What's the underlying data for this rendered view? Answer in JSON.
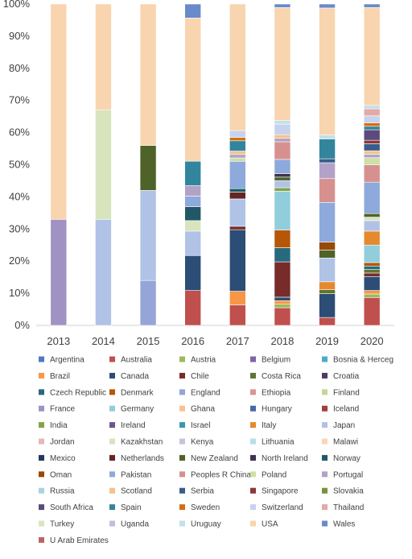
{
  "chart_data": {
    "type": "bar",
    "stacked": true,
    "normalized": true,
    "title": "",
    "xlabel": "",
    "ylabel": "",
    "ylim": [
      0,
      100
    ],
    "y_ticks": [
      "0%",
      "10%",
      "20%",
      "30%",
      "40%",
      "50%",
      "60%",
      "70%",
      "80%",
      "90%",
      "100%"
    ],
    "grid": false,
    "legend_position": "bottom",
    "categories": [
      "2013",
      "2014",
      "2015",
      "2016",
      "2017",
      "2018",
      "2019",
      "2020"
    ],
    "series": [
      {
        "name": "Argentina",
        "color": "#4E79C4",
        "values": [
          0,
          0,
          0,
          0,
          0,
          0,
          0,
          0
        ]
      },
      {
        "name": "Australia",
        "color": "#C0504D",
        "values": [
          0,
          0,
          0,
          10,
          6,
          5,
          2,
          8
        ]
      },
      {
        "name": "Austria",
        "color": "#9BBB59",
        "values": [
          0,
          0,
          0,
          0,
          0,
          1,
          0,
          1
        ]
      },
      {
        "name": "Belgium",
        "color": "#8064A2",
        "values": [
          0,
          0,
          0,
          0,
          0,
          0,
          0,
          0
        ]
      },
      {
        "name": "Bosnia & Herceg",
        "color": "#4BACC6",
        "values": [
          0,
          0,
          0,
          0,
          0,
          0,
          0,
          0
        ]
      },
      {
        "name": "Brazil",
        "color": "#F79646",
        "values": [
          0,
          0,
          0,
          0,
          4,
          1,
          0,
          1
        ]
      },
      {
        "name": "Canada",
        "color": "#2C4D75",
        "values": [
          0,
          0,
          0,
          10,
          18,
          1,
          6,
          4
        ]
      },
      {
        "name": "Chile",
        "color": "#772C2A",
        "values": [
          0,
          0,
          0,
          0,
          1,
          10,
          0,
          1
        ]
      },
      {
        "name": "Costa Rica",
        "color": "#5F7530",
        "values": [
          0,
          0,
          0,
          0,
          0,
          0,
          1,
          1
        ]
      },
      {
        "name": "Croatia",
        "color": "#4D3B62",
        "values": [
          0,
          0,
          0,
          0,
          0,
          0,
          0,
          0
        ]
      },
      {
        "name": "Czech Republic",
        "color": "#276A7C",
        "values": [
          0,
          0,
          0,
          0,
          0,
          4,
          0,
          1
        ]
      },
      {
        "name": "Denmark",
        "color": "#B65708",
        "values": [
          0,
          0,
          0,
          0,
          0,
          5,
          0,
          1
        ]
      },
      {
        "name": "England",
        "color": "#95A5D8",
        "values": [
          0,
          0,
          14,
          0,
          0,
          0,
          0,
          0
        ]
      },
      {
        "name": "Ethiopia",
        "color": "#D99694",
        "values": [
          0,
          0,
          0,
          0,
          0,
          0,
          0,
          0
        ]
      },
      {
        "name": "Finland",
        "color": "#C3D69B",
        "values": [
          0,
          0,
          0,
          0,
          0,
          0,
          0,
          0
        ]
      },
      {
        "name": "France",
        "color": "#A093C3",
        "values": [
          33,
          0,
          0,
          0,
          0,
          0,
          0,
          0
        ]
      },
      {
        "name": "Germany",
        "color": "#92CDDC",
        "values": [
          0,
          0,
          0,
          0,
          0,
          11,
          0,
          5
        ]
      },
      {
        "name": "Ghana",
        "color": "#FAC090",
        "values": [
          0,
          0,
          0,
          0,
          0,
          0,
          0,
          0
        ]
      },
      {
        "name": "Hungary",
        "color": "#466AA6",
        "values": [
          0,
          0,
          0,
          0,
          0,
          0,
          0,
          0
        ]
      },
      {
        "name": "Iceland",
        "color": "#A33D3A",
        "values": [
          0,
          0,
          0,
          0,
          0,
          0,
          0,
          0
        ]
      },
      {
        "name": "India",
        "color": "#83A44B",
        "values": [
          0,
          0,
          0,
          0,
          0,
          1,
          0,
          0
        ]
      },
      {
        "name": "Ireland",
        "color": "#6E5494",
        "values": [
          0,
          0,
          0,
          0,
          0,
          0,
          0,
          0
        ]
      },
      {
        "name": "Israel",
        "color": "#3C96AE",
        "values": [
          0,
          0,
          0,
          0,
          0,
          0,
          0,
          0
        ]
      },
      {
        "name": "Italy",
        "color": "#E5892D",
        "values": [
          0,
          0,
          0,
          0,
          0,
          0,
          2,
          4
        ]
      },
      {
        "name": "Japan",
        "color": "#B0C3E6",
        "values": [
          0,
          33,
          28,
          7,
          8,
          2,
          6,
          3
        ]
      },
      {
        "name": "Jordan",
        "color": "#E6B8B7",
        "values": [
          0,
          0,
          0,
          0,
          0,
          0,
          0,
          0
        ]
      },
      {
        "name": "Kazakhstan",
        "color": "#D7E4BD",
        "values": [
          0,
          34,
          0,
          3,
          0,
          0,
          0,
          1
        ]
      },
      {
        "name": "Kenya",
        "color": "#CCC1DA",
        "values": [
          0,
          0,
          0,
          0,
          0,
          0,
          0,
          0
        ]
      },
      {
        "name": "Lithuania",
        "color": "#B7DEE8",
        "values": [
          0,
          0,
          0,
          0,
          0,
          0,
          0,
          0
        ]
      },
      {
        "name": "Malawi",
        "color": "#FCD5B5",
        "values": [
          0,
          0,
          0,
          0,
          0,
          0,
          0,
          0
        ]
      },
      {
        "name": "Mexico",
        "color": "#1F3A5C",
        "values": [
          0,
          0,
          0,
          0,
          0,
          0,
          0,
          0
        ]
      },
      {
        "name": "Netherlands",
        "color": "#632523",
        "values": [
          0,
          0,
          0,
          0,
          2,
          0,
          0,
          0
        ]
      },
      {
        "name": "New Zealand",
        "color": "#4F6228",
        "values": [
          0,
          0,
          14,
          0,
          0,
          1,
          2,
          1
        ]
      },
      {
        "name": "North Ireland",
        "color": "#3F3151",
        "values": [
          0,
          0,
          0,
          0,
          0,
          1,
          0,
          0
        ]
      },
      {
        "name": "Norway",
        "color": "#205867",
        "values": [
          0,
          0,
          0,
          4,
          1,
          0,
          0,
          0
        ]
      },
      {
        "name": "Oman",
        "color": "#984807",
        "values": [
          0,
          0,
          0,
          0,
          0,
          0,
          2,
          0
        ]
      },
      {
        "name": "Pakistan",
        "color": "#8EA9DB",
        "values": [
          0,
          0,
          0,
          3,
          8,
          4,
          10,
          9
        ]
      },
      {
        "name": "Peoples R China",
        "color": "#D6918F",
        "values": [
          0,
          0,
          0,
          0,
          0,
          5,
          6,
          5
        ]
      },
      {
        "name": "Poland",
        "color": "#CDE0A8",
        "values": [
          0,
          0,
          0,
          0,
          1,
          0,
          0,
          2
        ]
      },
      {
        "name": "Portugal",
        "color": "#B3A2C7",
        "values": [
          0,
          0,
          0,
          3,
          1,
          1,
          4,
          1
        ]
      },
      {
        "name": "Russia",
        "color": "#A6D3E0",
        "values": [
          0,
          0,
          0,
          0,
          0,
          0,
          0,
          0
        ]
      },
      {
        "name": "Scotland",
        "color": "#F4C28E",
        "values": [
          0,
          0,
          0,
          0,
          1,
          1,
          0,
          1
        ]
      },
      {
        "name": "Serbia",
        "color": "#385D8A",
        "values": [
          0,
          0,
          0,
          0,
          0,
          0,
          1,
          2
        ]
      },
      {
        "name": "Singapore",
        "color": "#8C3836",
        "values": [
          0,
          0,
          0,
          0,
          0,
          0,
          0,
          1
        ]
      },
      {
        "name": "Slovakia",
        "color": "#76923C",
        "values": [
          0,
          0,
          0,
          0,
          0,
          0,
          0,
          0
        ]
      },
      {
        "name": "South Africa",
        "color": "#5C4A7D",
        "values": [
          0,
          0,
          0,
          0,
          0,
          0,
          0,
          3
        ]
      },
      {
        "name": "Spain",
        "color": "#31859C",
        "values": [
          0,
          0,
          0,
          7,
          3,
          0,
          5,
          1
        ]
      },
      {
        "name": "Sweden",
        "color": "#D46E13",
        "values": [
          0,
          0,
          0,
          0,
          1,
          0,
          0,
          1
        ]
      },
      {
        "name": "Switzerland",
        "color": "#C5D3EE",
        "values": [
          0,
          0,
          0,
          0,
          2,
          3,
          0,
          2
        ]
      },
      {
        "name": "Thailand",
        "color": "#E3A9A8",
        "values": [
          0,
          0,
          0,
          0,
          0,
          0,
          0,
          2
        ]
      },
      {
        "name": "Turkey",
        "color": "#D8E6BF",
        "values": [
          0,
          0,
          0,
          0,
          0,
          0,
          0,
          0
        ]
      },
      {
        "name": "Uganda",
        "color": "#C7BDD9",
        "values": [
          0,
          0,
          0,
          0,
          0,
          0,
          0,
          0
        ]
      },
      {
        "name": "Uruguay",
        "color": "#C2E0EA",
        "values": [
          0,
          0,
          0,
          0,
          0,
          1,
          1,
          1
        ]
      },
      {
        "name": "USA",
        "color": "#F8D4AF",
        "values": [
          67,
          33,
          44,
          41,
          37,
          32,
          32,
          28
        ]
      },
      {
        "name": "Wales",
        "color": "#6A8AC9",
        "values": [
          0,
          0,
          0,
          4,
          0,
          1,
          1,
          1
        ]
      },
      {
        "name": "U Arab Emirates",
        "color": "#BC6463",
        "values": [
          0,
          0,
          0,
          0,
          0,
          0,
          0,
          0
        ]
      }
    ]
  }
}
